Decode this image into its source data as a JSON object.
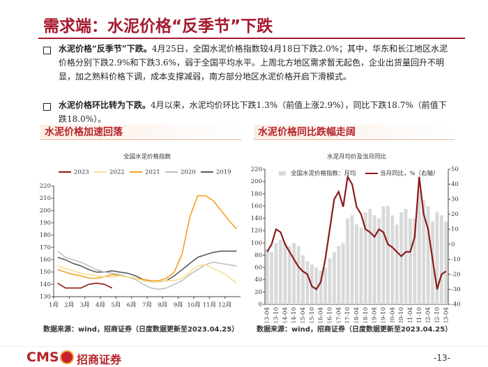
{
  "header": {
    "title": "需求端：水泥价格“反季节”下跌"
  },
  "bullets": [
    {
      "lead": "水泥价格“反季节”下跌。",
      "text": "4月25日，全国水泥价格指数较4月18日下跌2.0%；其中，华东和长江地区水泥价格分别下跌2.9%和下跌3.6%，弱于全国平均水平。上周北方地区需求暂无起色，企业出货量回升不明显，加之熟料价格下调，成本支撑减弱，南方部分地区水泥价格开启下滑模式。"
    },
    {
      "lead": "水泥价格环比转为下跌。",
      "text": "4月以来，水泥均价环比下跌1.3%（前值上涨2.9%），同比下跌18.7%（前值下跌18.0%）。"
    }
  ],
  "panels": [
    {
      "title": "水泥价格加速回落",
      "source": "数据来源：wind，招商证券（日度数据更新至2023.04.25）"
    },
    {
      "title": "水泥价格同比跌幅走阔",
      "source": "数据来源：wind，招商证券（日度数据更新至2023.04.25）"
    }
  ],
  "chart_data": [
    {
      "type": "line",
      "title": "全国水泥价格指数",
      "categories": [
        "1月",
        null,
        "2月",
        null,
        "3月",
        null,
        "4月",
        null,
        "5月",
        null,
        "6月",
        null,
        "7月",
        null,
        "8月",
        null,
        "9月",
        null,
        "10月",
        null,
        "11月",
        null,
        "12月",
        null
      ],
      "ylim": [
        130,
        220
      ],
      "yticks": [
        130,
        140,
        150,
        160,
        170,
        180,
        190,
        200,
        210,
        220
      ],
      "series": [
        {
          "name": "2023",
          "color": "#8B1A1A",
          "values": [
            141,
            137,
            137,
            137,
            140,
            141,
            140,
            137,
            null,
            null,
            null,
            null,
            null,
            null,
            null,
            null,
            null,
            null,
            null,
            null,
            null,
            null,
            null,
            null
          ]
        },
        {
          "name": "2022",
          "color": "#F7DE8F",
          "values": [
            155,
            153,
            151,
            149,
            148,
            147,
            146,
            146,
            147,
            146,
            145,
            143,
            142,
            142,
            143,
            143,
            145,
            150,
            155,
            156,
            153,
            150,
            146,
            141
          ]
        },
        {
          "name": "2021",
          "color": "#F0A020",
          "values": [
            152,
            150,
            148,
            147,
            145,
            145,
            146,
            148,
            147,
            146,
            145,
            144,
            143,
            143,
            145,
            150,
            165,
            195,
            212,
            212,
            208,
            200,
            192,
            185
          ]
        },
        {
          "name": "2020",
          "color": "#BFBFBF",
          "values": [
            167,
            162,
            160,
            158,
            155,
            152,
            150,
            149,
            148,
            146,
            144,
            140,
            137,
            136,
            137,
            140,
            143,
            148,
            152,
            156,
            158,
            157,
            156,
            155
          ]
        },
        {
          "name": "2019",
          "color": "#595959",
          "values": [
            162,
            160,
            157,
            155,
            152,
            150,
            150,
            151,
            150,
            149,
            147,
            144,
            142,
            142,
            143,
            147,
            152,
            157,
            162,
            164,
            166,
            167,
            167,
            167
          ]
        }
      ]
    },
    {
      "type": "combo",
      "title": "水泥月均价及当月同比",
      "categories": [
        "13-04",
        null,
        "13-10",
        null,
        "14-04",
        null,
        "14-10",
        null,
        "15-04",
        null,
        "15-10",
        null,
        "16-04",
        null,
        "16-10",
        null,
        "17-04",
        null,
        "17-10",
        null,
        "18-04",
        null,
        "18-10",
        null,
        "19-04",
        null,
        "19-10",
        null,
        "20-04",
        null,
        "20-10",
        null,
        "21-04",
        null,
        "21-10",
        null,
        "22-04",
        null,
        "22-10",
        null,
        "23-04"
      ],
      "ylim": [
        0,
        220
      ],
      "yticks": [
        0,
        20,
        40,
        60,
        80,
        100,
        120,
        140,
        160,
        180,
        200,
        220
      ],
      "y2lim": [
        -40,
        50
      ],
      "y2ticks": [
        -40,
        -30,
        -20,
        -10,
        0,
        10,
        20,
        30,
        40,
        50
      ],
      "series": [
        {
          "name": "全国水泥价格指数：月均",
          "type": "bar",
          "color": "#D9D9D9",
          "values": [
            90,
            85,
            100,
            105,
            100,
            95,
            100,
            95,
            80,
            70,
            65,
            60,
            55,
            60,
            75,
            85,
            95,
            100,
            140,
            145,
            130,
            125,
            150,
            155,
            145,
            140,
            160,
            160,
            145,
            130,
            150,
            155,
            140,
            140,
            185,
            170,
            160,
            135,
            150,
            145,
            135
          ]
        },
        {
          "name": "当月同比，%（右轴）",
          "type": "line",
          "axis": "y2",
          "color": "#8B1A1A",
          "values": [
            -5,
            0,
            10,
            8,
            0,
            -5,
            -10,
            -15,
            -18,
            -20,
            -28,
            -30,
            -25,
            -10,
            10,
            30,
            35,
            25,
            45,
            40,
            25,
            20,
            10,
            8,
            5,
            10,
            8,
            0,
            -2,
            -5,
            -8,
            -5,
            -5,
            5,
            45,
            20,
            10,
            -10,
            -30,
            -20,
            -18
          ]
        }
      ]
    }
  ],
  "footer": {
    "brand": "CMS",
    "brand_cn": "招商证券",
    "page": "-13-"
  }
}
